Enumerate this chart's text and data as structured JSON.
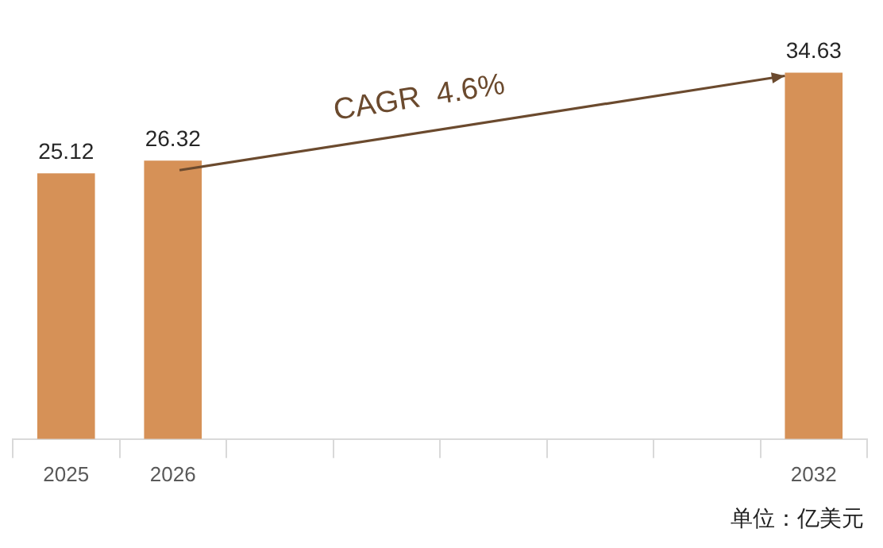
{
  "chart_data": {
    "type": "bar",
    "categories": [
      "2025",
      "2026",
      null,
      null,
      null,
      null,
      null,
      "2032"
    ],
    "values": [
      25.12,
      26.32,
      null,
      null,
      null,
      null,
      null,
      34.63
    ],
    "color": "#d69157",
    "data_labels": true,
    "legend": false,
    "grid": false,
    "annotations": [
      "CAGR  4.6%",
      "单位：亿美元"
    ]
  }
}
